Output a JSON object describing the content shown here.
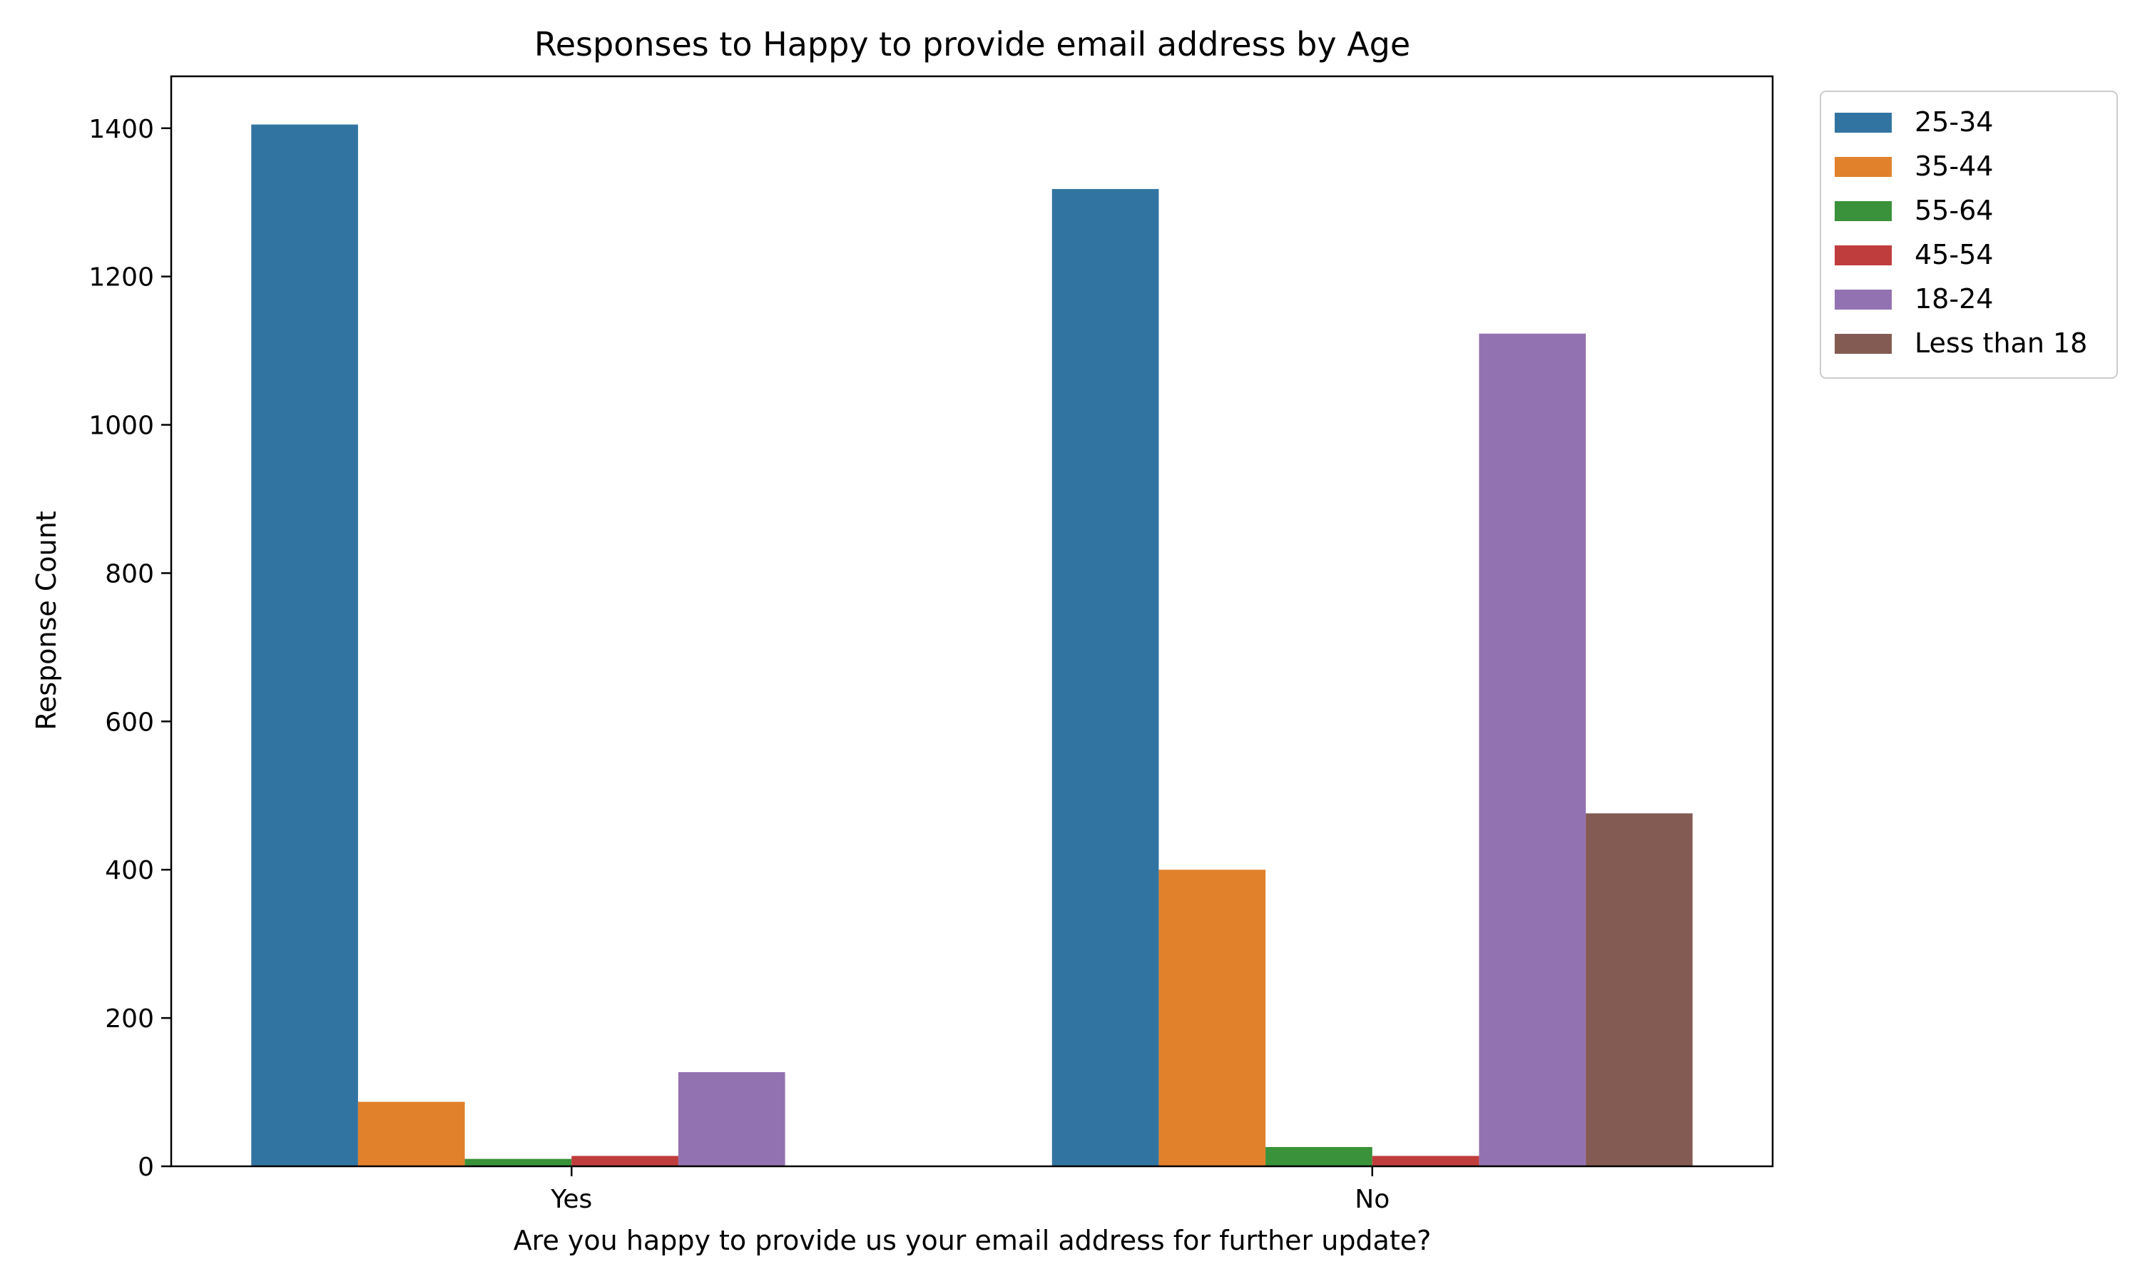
{
  "chart_data": {
    "type": "bar",
    "title": "Responses to Happy to provide email address by Age",
    "xlabel": "Are you happy to provide us your email address for further update?",
    "ylabel": "Response Count",
    "categories": [
      "Yes",
      "No"
    ],
    "ylim": [
      0,
      1470
    ],
    "yticks": [
      0,
      200,
      400,
      600,
      800,
      1000,
      1200,
      1400
    ],
    "grid": false,
    "legend_position": "outside-top-right",
    "series": [
      {
        "name": "25-34",
        "color": "#3274a1",
        "values": [
          1405,
          1318
        ]
      },
      {
        "name": "35-44",
        "color": "#e1812c",
        "values": [
          87,
          400
        ]
      },
      {
        "name": "55-64",
        "color": "#3a923a",
        "values": [
          10,
          26
        ]
      },
      {
        "name": "45-54",
        "color": "#c03d3e",
        "values": [
          14,
          14
        ]
      },
      {
        "name": "18-24",
        "color": "#9372b2",
        "values": [
          127,
          1123
        ]
      },
      {
        "name": "Less than 18",
        "color": "#845b53",
        "values": [
          0,
          476
        ]
      }
    ]
  }
}
